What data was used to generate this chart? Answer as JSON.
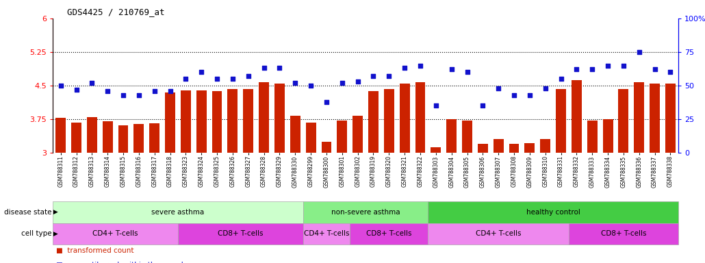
{
  "title": "GDS4425 / 210769_at",
  "samples": [
    "GSM788311",
    "GSM788312",
    "GSM788313",
    "GSM788314",
    "GSM788315",
    "GSM788316",
    "GSM788317",
    "GSM788318",
    "GSM788323",
    "GSM788324",
    "GSM788325",
    "GSM788326",
    "GSM788327",
    "GSM788328",
    "GSM788329",
    "GSM788330",
    "GSM788299",
    "GSM788300",
    "GSM788301",
    "GSM788302",
    "GSM788319",
    "GSM788320",
    "GSM788321",
    "GSM788322",
    "GSM788303",
    "GSM788304",
    "GSM788305",
    "GSM788306",
    "GSM788307",
    "GSM788308",
    "GSM788309",
    "GSM788310",
    "GSM788331",
    "GSM788332",
    "GSM788333",
    "GSM788334",
    "GSM788335",
    "GSM788336",
    "GSM788337",
    "GSM788338"
  ],
  "bar_values": [
    3.78,
    3.68,
    3.8,
    3.7,
    3.62,
    3.64,
    3.66,
    4.35,
    4.4,
    4.4,
    4.38,
    4.43,
    4.43,
    4.58,
    4.55,
    3.83,
    3.68,
    3.24,
    3.72,
    3.82,
    4.38,
    4.42,
    4.55,
    4.58,
    3.12,
    3.75,
    3.72,
    3.2,
    3.3,
    3.2,
    3.22,
    3.3,
    4.42,
    4.62,
    3.72,
    3.75,
    4.42,
    4.58,
    4.55,
    4.55
  ],
  "dot_values": [
    50,
    47,
    52,
    46,
    43,
    43,
    46,
    46,
    55,
    60,
    55,
    55,
    57,
    63,
    63,
    52,
    50,
    38,
    52,
    53,
    57,
    57,
    63,
    65,
    35,
    62,
    60,
    35,
    48,
    43,
    43,
    48,
    55,
    62,
    62,
    65,
    65,
    75,
    62,
    60
  ],
  "ylim_left": [
    3.0,
    6.0
  ],
  "ylim_right": [
    0,
    100
  ],
  "yticks_left": [
    3.0,
    3.75,
    4.5,
    5.25,
    6.0
  ],
  "ytick_labels_left": [
    "3",
    "3.75",
    "4.5",
    "5.25",
    "6"
  ],
  "yticks_right": [
    0,
    25,
    50,
    75,
    100
  ],
  "ytick_labels_right": [
    "0",
    "25",
    "50",
    "75",
    "100%"
  ],
  "bar_color": "#cc2200",
  "dot_color": "#1111cc",
  "hline_values": [
    3.75,
    4.5,
    5.25
  ],
  "disease_state_segments": [
    {
      "label": "severe asthma",
      "start": 0,
      "end": 15,
      "color": "#ccffcc"
    },
    {
      "label": "non-severe asthma",
      "start": 16,
      "end": 23,
      "color": "#88ee88"
    },
    {
      "label": "healthy control",
      "start": 24,
      "end": 39,
      "color": "#44cc44"
    }
  ],
  "cell_type_segments": [
    {
      "label": "CD4+ T-cells",
      "start": 0,
      "end": 7,
      "color": "#ee88ee"
    },
    {
      "label": "CD8+ T-cells",
      "start": 8,
      "end": 15,
      "color": "#dd44dd"
    },
    {
      "label": "CD4+ T-cells",
      "start": 16,
      "end": 18,
      "color": "#ee88ee"
    },
    {
      "label": "CD8+ T-cells",
      "start": 19,
      "end": 23,
      "color": "#dd44dd"
    },
    {
      "label": "CD4+ T-cells",
      "start": 24,
      "end": 32,
      "color": "#ee88ee"
    },
    {
      "label": "CD8+ T-cells",
      "start": 33,
      "end": 39,
      "color": "#dd44dd"
    }
  ]
}
